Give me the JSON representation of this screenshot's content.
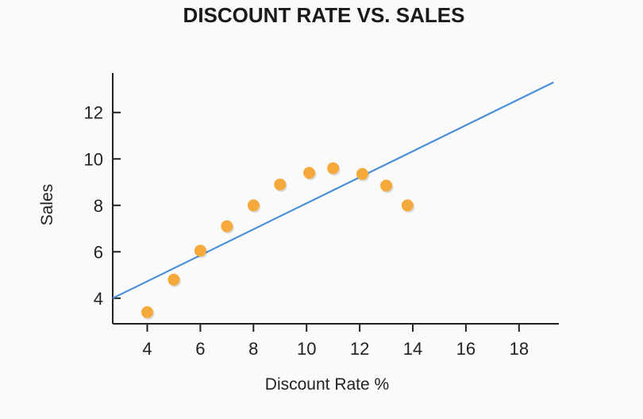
{
  "chart_data": {
    "type": "scatter",
    "title": "DISCOUNT RATE VS. SALES",
    "xlabel": "Discount Rate %",
    "ylabel": "Sales",
    "xlim": [
      2.7,
      19.5
    ],
    "ylim": [
      2.9,
      13.7
    ],
    "xticks": [
      4,
      6,
      8,
      10,
      12,
      14,
      16,
      18
    ],
    "yticks": [
      4,
      6,
      8,
      10,
      12
    ],
    "grid": false,
    "colors": {
      "points": "#f5a93a",
      "trendline": "#4a90d9"
    },
    "points": [
      {
        "x": 4.0,
        "y": 3.4
      },
      {
        "x": 5.0,
        "y": 4.8
      },
      {
        "x": 6.0,
        "y": 6.05
      },
      {
        "x": 7.0,
        "y": 7.1
      },
      {
        "x": 8.0,
        "y": 8.0
      },
      {
        "x": 9.0,
        "y": 8.9
      },
      {
        "x": 10.1,
        "y": 9.4
      },
      {
        "x": 11.0,
        "y": 9.6
      },
      {
        "x": 12.1,
        "y": 9.35
      },
      {
        "x": 13.0,
        "y": 8.85
      },
      {
        "x": 13.8,
        "y": 8.0
      }
    ],
    "trendline": {
      "x": [
        2.7,
        19.3
      ],
      "y": [
        4.0,
        13.3
      ]
    }
  }
}
